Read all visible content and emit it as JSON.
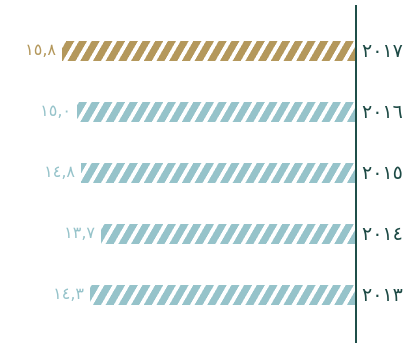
{
  "chart_data": {
    "type": "bar",
    "orientation": "horizontal",
    "title": "",
    "xlabel": "",
    "ylabel": "",
    "categories": [
      "٢٠١٧",
      "٢٠١٦",
      "٢٠١٥",
      "٢٠١٤",
      "٢٠١٣"
    ],
    "values": [
      15.8,
      15.0,
      14.8,
      13.7,
      14.3
    ],
    "value_labels": [
      "١٥,٨",
      "١٥,٠",
      "١٤,٨",
      "١٣,٧",
      "١٤,٣"
    ],
    "xlim": [
      0,
      15.8
    ],
    "bar_colors": [
      "#b4985c",
      "#96c3ca",
      "#96c3ca",
      "#96c3ca",
      "#96c3ca"
    ],
    "label_colors": [
      "#b4985c",
      "#96c3ca",
      "#96c3ca",
      "#96c3ca",
      "#96c3ca"
    ],
    "axis_color": "#1f4f49",
    "year_color": "#1d4a45",
    "bar_pattern": "diagonal-stripes",
    "grid": false,
    "legend": "none"
  }
}
